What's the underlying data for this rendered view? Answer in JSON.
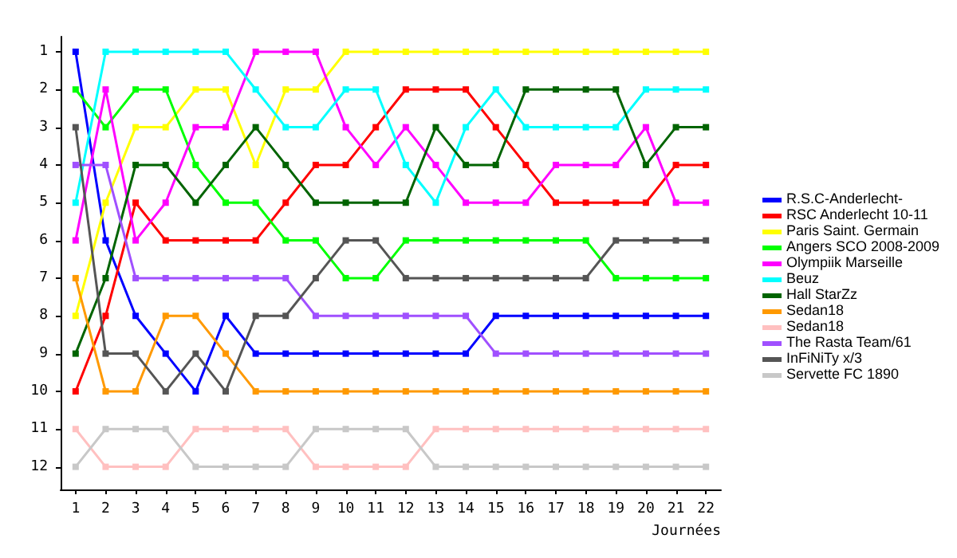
{
  "chart_data": {
    "type": "line",
    "xlabel": "Journées",
    "x": [
      1,
      2,
      3,
      4,
      5,
      6,
      7,
      8,
      9,
      10,
      11,
      12,
      13,
      14,
      15,
      16,
      17,
      18,
      19,
      20,
      21,
      22
    ],
    "xlim": [
      0.5,
      22.5
    ],
    "xticks": [
      1,
      2,
      3,
      4,
      5,
      6,
      7,
      8,
      9,
      10,
      11,
      12,
      13,
      14,
      15,
      16,
      17,
      18,
      19,
      20,
      21,
      22
    ],
    "ylim": [
      12.6,
      0.6
    ],
    "yticks": [
      1,
      2,
      3,
      4,
      5,
      6,
      7,
      8,
      9,
      10,
      11,
      12
    ],
    "grid": false,
    "legend": "right",
    "marker": "square",
    "line_style": "solid",
    "series": [
      {
        "name": "R.S.C-Anderlecht-",
        "color": "#0000ff",
        "values": [
          1,
          6,
          8,
          9,
          10,
          8,
          9,
          9,
          9,
          9,
          9,
          9,
          9,
          9,
          8,
          8,
          8,
          8,
          8,
          8,
          8,
          8
        ]
      },
      {
        "name": "RSC Anderlecht 10-11",
        "color": "#ff0000",
        "values": [
          10,
          8,
          5,
          6,
          6,
          6,
          6,
          5,
          4,
          4,
          3,
          2,
          2,
          2,
          3,
          4,
          5,
          5,
          5,
          5,
          4,
          4
        ]
      },
      {
        "name": "Paris Saint. Germain",
        "color": "#ffff00",
        "values": [
          8,
          5,
          3,
          3,
          2,
          2,
          4,
          2,
          2,
          1,
          1,
          1,
          1,
          1,
          1,
          1,
          1,
          1,
          1,
          1,
          1,
          1
        ]
      },
      {
        "name": "Angers SCO 2008-2009",
        "color": "#00ff00",
        "values": [
          2,
          3,
          2,
          2,
          4,
          5,
          5,
          6,
          6,
          7,
          7,
          6,
          6,
          6,
          6,
          6,
          6,
          6,
          7,
          7,
          7,
          7
        ]
      },
      {
        "name": "Olympiik Marseille",
        "color": "#ff00ff",
        "values": [
          6,
          2,
          6,
          5,
          3,
          3,
          1,
          1,
          1,
          3,
          4,
          3,
          4,
          5,
          5,
          5,
          4,
          4,
          4,
          3,
          5,
          5
        ]
      },
      {
        "name": "Beuz",
        "color": "#00ffff",
        "values": [
          5,
          1,
          1,
          1,
          1,
          1,
          2,
          3,
          3,
          2,
          2,
          4,
          5,
          3,
          2,
          3,
          3,
          3,
          3,
          2,
          2,
          2
        ]
      },
      {
        "name": "Hall StarZz",
        "color": "#006400",
        "values": [
          9,
          7,
          4,
          4,
          5,
          4,
          3,
          4,
          5,
          5,
          5,
          5,
          3,
          4,
          4,
          2,
          2,
          2,
          2,
          4,
          3,
          3
        ]
      },
      {
        "name": "Sedan18",
        "color": "#ff9900",
        "values": [
          7,
          10,
          10,
          8,
          8,
          9,
          10,
          10,
          10,
          10,
          10,
          10,
          10,
          10,
          10,
          10,
          10,
          10,
          10,
          10,
          10,
          10
        ]
      },
      {
        "name": "Sedan18",
        "color": "#ffc0c0",
        "values": [
          11,
          12,
          12,
          12,
          11,
          11,
          11,
          11,
          12,
          12,
          12,
          12,
          11,
          11,
          11,
          11,
          11,
          11,
          11,
          11,
          11,
          11
        ]
      },
      {
        "name": "The Rasta Team/61",
        "color": "#a050ff",
        "values": [
          4,
          4,
          7,
          7,
          7,
          7,
          7,
          7,
          8,
          8,
          8,
          8,
          8,
          8,
          9,
          9,
          9,
          9,
          9,
          9,
          9,
          9
        ]
      },
      {
        "name": "InFiNiTy x/3",
        "color": "#555555",
        "values": [
          3,
          9,
          9,
          10,
          9,
          10,
          8,
          8,
          7,
          6,
          6,
          7,
          7,
          7,
          7,
          7,
          7,
          7,
          6,
          6,
          6,
          6
        ]
      },
      {
        "name": "Servette FC 1890",
        "color": "#c8c8c8",
        "values": [
          12,
          11,
          11,
          11,
          12,
          12,
          12,
          12,
          11,
          11,
          11,
          11,
          12,
          12,
          12,
          12,
          12,
          12,
          12,
          12,
          12,
          12
        ]
      }
    ]
  }
}
